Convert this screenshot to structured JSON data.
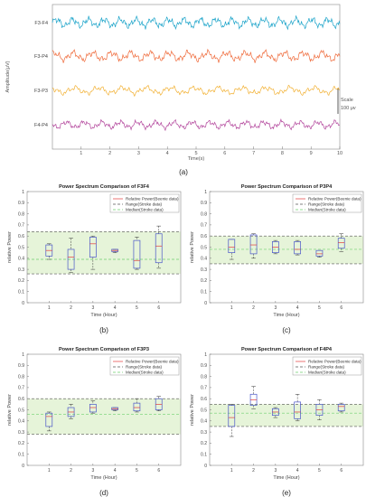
{
  "panel_labels": [
    "(a)",
    "(b)",
    "(c)",
    "(d)",
    "(e)"
  ],
  "colors": {
    "F3-F4": "#1aa3c9",
    "F3-P4": "#ef6a3a",
    "F3-P3": "#f2b134",
    "F4-P4": "#b2449b",
    "box": "#4a56c9",
    "median_box": "#e23b3b",
    "range_band": "#e6f4d9",
    "median_line": "#6fd06f"
  },
  "chart_data": [
    {
      "type": "line",
      "panel": "(a)",
      "series": [
        {
          "name": "F3-F4",
          "amplitude": 1.0,
          "frequency_hz": 1.8
        },
        {
          "name": "F3-P4",
          "amplitude": 1.0,
          "frequency_hz": 1.5
        },
        {
          "name": "F3-P3",
          "amplitude": 0.8,
          "frequency_hz": 1.2
        },
        {
          "name": "F4-P4",
          "amplitude": 0.8,
          "frequency_hz": 1.6
        }
      ],
      "xlabel": "Time(s)",
      "ylabel": "Amplitude(μV)",
      "x_ticks": [
        "1",
        "2",
        "3",
        "4",
        "5",
        "6",
        "7",
        "8",
        "9",
        "10"
      ],
      "xlim": [
        0,
        10
      ],
      "scale_label": "Scale",
      "scale_value": "100 μv"
    },
    {
      "type": "box",
      "panel": "(b)",
      "title": "Power Spectrum Comparison of F3F4",
      "xlabel": "Time (Hour)",
      "ylabel": "relative Power",
      "ylim": [
        0,
        1
      ],
      "y_ticks": [
        "0",
        "0.1",
        "0.2",
        "0.3",
        "0.4",
        "0.5",
        "0.6",
        "0.7",
        "0.8",
        "0.9",
        "1"
      ],
      "categories": [
        "1",
        "2",
        "3",
        "4",
        "5",
        "6"
      ],
      "legend": [
        "Relative Power(Beenie data)",
        "Range(Stroke data)",
        "Median(Stroke data)"
      ],
      "range": [
        0.26,
        0.64
      ],
      "median": 0.39,
      "boxes": [
        {
          "min": 0.39,
          "q1": 0.42,
          "median": 0.47,
          "q3": 0.52,
          "max": 0.53
        },
        {
          "min": 0.27,
          "q1": 0.3,
          "median": 0.41,
          "q3": 0.48,
          "max": 0.58
        },
        {
          "min": 0.3,
          "q1": 0.41,
          "median": 0.53,
          "q3": 0.59,
          "max": 0.6
        },
        {
          "min": 0.45,
          "q1": 0.46,
          "median": 0.47,
          "q3": 0.48,
          "max": 0.48
        },
        {
          "min": 0.3,
          "q1": 0.31,
          "median": 0.38,
          "q3": 0.56,
          "max": 0.59
        },
        {
          "min": 0.31,
          "q1": 0.36,
          "median": 0.51,
          "q3": 0.62,
          "max": 0.69
        }
      ]
    },
    {
      "type": "box",
      "panel": "(c)",
      "title": "Power Spectrum Comparison of P3P4",
      "xlabel": "Time (Hour)",
      "ylabel": "relative Power",
      "ylim": [
        0,
        1
      ],
      "y_ticks": [
        "0",
        "0.1",
        "0.2",
        "0.3",
        "0.4",
        "0.5",
        "0.6",
        "0.7",
        "0.8",
        "0.9",
        "1"
      ],
      "categories": [
        "1",
        "2",
        "3",
        "4",
        "5",
        "6"
      ],
      "legend": [
        "Relative Power(Beenie data)",
        "Range(Stroke data)",
        "Median(Stroke data)"
      ],
      "range": [
        0.35,
        0.6
      ],
      "median": 0.48,
      "boxes": [
        {
          "min": 0.39,
          "q1": 0.45,
          "median": 0.5,
          "q3": 0.57,
          "max": 0.57
        },
        {
          "min": 0.4,
          "q1": 0.44,
          "median": 0.52,
          "q3": 0.61,
          "max": 0.62
        },
        {
          "min": 0.44,
          "q1": 0.45,
          "median": 0.5,
          "q3": 0.55,
          "max": 0.56
        },
        {
          "min": 0.43,
          "q1": 0.44,
          "median": 0.48,
          "q3": 0.55,
          "max": 0.56
        },
        {
          "min": 0.41,
          "q1": 0.42,
          "median": 0.44,
          "q3": 0.47,
          "max": 0.47
        },
        {
          "min": 0.46,
          "q1": 0.49,
          "median": 0.54,
          "q3": 0.58,
          "max": 0.62
        }
      ]
    },
    {
      "type": "box",
      "panel": "(d)",
      "title": "Power Spectrum Comparison of F3P3",
      "xlabel": "Time (Hour)",
      "ylabel": "relative Power",
      "ylim": [
        0,
        1
      ],
      "y_ticks": [
        "0",
        "0.1",
        "0.2",
        "0.3",
        "0.4",
        "0.5",
        "0.6",
        "0.7",
        "0.8",
        "0.9",
        "1"
      ],
      "categories": [
        "1",
        "2",
        "3",
        "4",
        "5",
        "6"
      ],
      "legend": [
        "Relative Power(Beenie data)",
        "Range(Stroke data)",
        "Median(Stroke data)"
      ],
      "range": [
        0.28,
        0.6
      ],
      "median": 0.46,
      "boxes": [
        {
          "min": 0.31,
          "q1": 0.35,
          "median": 0.44,
          "q3": 0.47,
          "max": 0.48
        },
        {
          "min": 0.42,
          "q1": 0.44,
          "median": 0.48,
          "q3": 0.52,
          "max": 0.55
        },
        {
          "min": 0.47,
          "q1": 0.48,
          "median": 0.52,
          "q3": 0.55,
          "max": 0.58
        },
        {
          "min": 0.49,
          "q1": 0.5,
          "median": 0.51,
          "q3": 0.52,
          "max": 0.52
        },
        {
          "min": 0.48,
          "q1": 0.49,
          "median": 0.52,
          "q3": 0.56,
          "max": 0.6
        },
        {
          "min": 0.49,
          "q1": 0.5,
          "median": 0.55,
          "q3": 0.6,
          "max": 0.62
        }
      ]
    },
    {
      "type": "box",
      "panel": "(e)",
      "title": "Power Spectrum Comparison of F4P4",
      "xlabel": "Time (Hour)",
      "ylabel": "relative Power",
      "ylim": [
        0,
        1
      ],
      "y_ticks": [
        "0",
        "0.1",
        "0.2",
        "0.3",
        "0.4",
        "0.5",
        "0.6",
        "0.7",
        "0.8",
        "0.9",
        "1"
      ],
      "categories": [
        "1",
        "2",
        "3",
        "4",
        "5",
        "6"
      ],
      "legend": [
        "Relative Power(Beenie data)",
        "Range(Stroke data)",
        "Median(Stroke data)"
      ],
      "range": [
        0.35,
        0.55
      ],
      "median": 0.47,
      "boxes": [
        {
          "min": 0.26,
          "q1": 0.35,
          "median": 0.43,
          "q3": 0.54,
          "max": 0.55
        },
        {
          "min": 0.51,
          "q1": 0.54,
          "median": 0.59,
          "q3": 0.64,
          "max": 0.71
        },
        {
          "min": 0.43,
          "q1": 0.45,
          "median": 0.48,
          "q3": 0.51,
          "max": 0.52
        },
        {
          "min": 0.4,
          "q1": 0.42,
          "median": 0.48,
          "q3": 0.57,
          "max": 0.64
        },
        {
          "min": 0.41,
          "q1": 0.45,
          "median": 0.5,
          "q3": 0.55,
          "max": 0.59
        },
        {
          "min": 0.48,
          "q1": 0.49,
          "median": 0.53,
          "q3": 0.55,
          "max": 0.56
        }
      ]
    }
  ]
}
